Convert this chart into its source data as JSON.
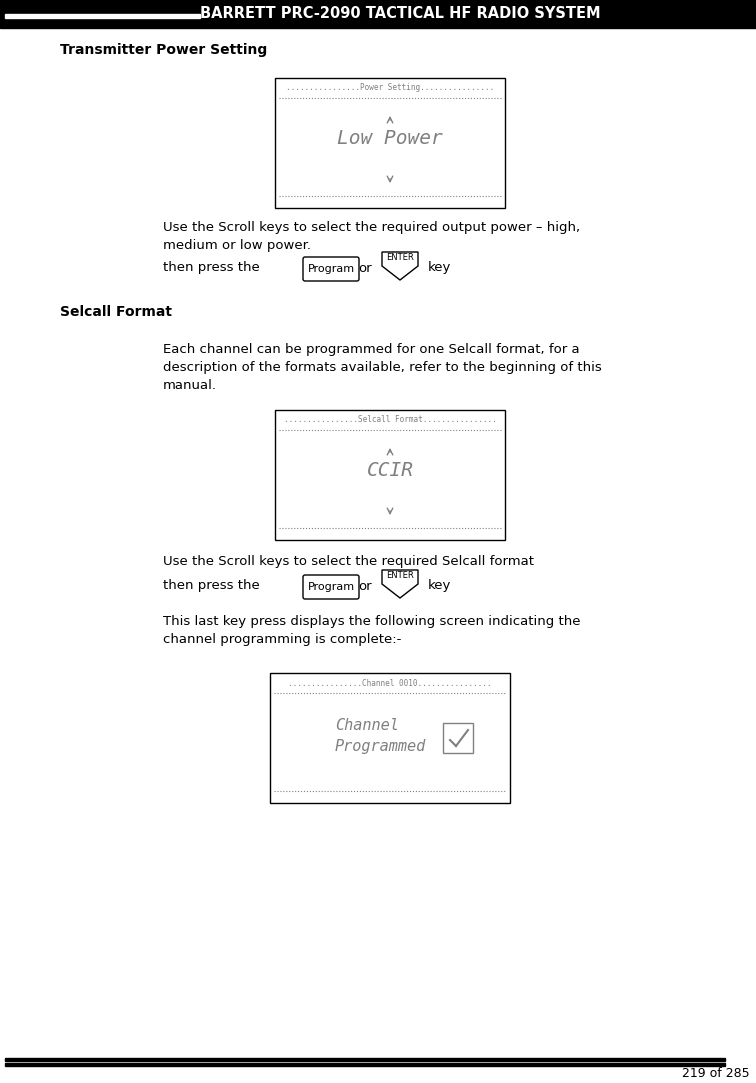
{
  "header_text": "BARRETT PRC-2090 TACTICAL HF RADIO SYSTEM",
  "header_bg": "#000000",
  "header_text_color": "#ffffff",
  "footer_text": "219 of 285",
  "page_bg": "#ffffff",
  "section1_title": "Transmitter Power Setting",
  "section2_title": "Selcall Format",
  "screen1_title": "Power Setting",
  "screen1_content": "Low Power",
  "screen2_title": "Selcall Format",
  "screen2_content": "CCIR",
  "screen3_title": "Channel 0010",
  "para1": "Use the Scroll keys to select the required output power – high,\nmedium or low power.",
  "para2": "then press the",
  "para3": "or",
  "para4": "key",
  "para5a": "Each channel can be programmed for one Selcall format, for a",
  "para5b": "description of the formats available, refer to the beginning of this",
  "para5c": "manual.",
  "para6": "Use the Scroll keys to select the required Selcall format",
  "para7": "then press the",
  "para8": "or",
  "para9": "key",
  "para10a": "This last key press displays the following screen indicating the",
  "para10b": "channel programming is complete:-"
}
